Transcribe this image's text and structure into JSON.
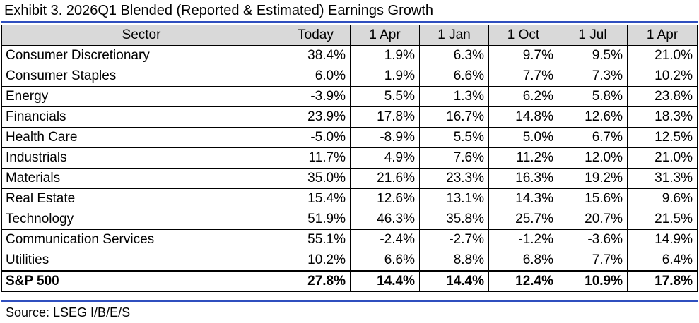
{
  "exhibit": {
    "title": "Exhibit 3.  2026Q1 Blended (Reported & Estimated) Earnings Growth",
    "source": "Source: LSEG I/B/E/S"
  },
  "table": {
    "headers": [
      "Sector",
      "Today",
      "1 Apr",
      "1 Jan",
      "1 Oct",
      "1 Jul",
      "1 Apr"
    ],
    "rows": [
      [
        "Consumer Discretionary",
        "38.4%",
        "1.9%",
        "6.3%",
        "9.7%",
        "9.5%",
        "21.0%"
      ],
      [
        "Consumer Staples",
        "6.0%",
        "1.9%",
        "6.6%",
        "7.7%",
        "7.3%",
        "10.2%"
      ],
      [
        "Energy",
        "-3.9%",
        "5.5%",
        "1.3%",
        "6.2%",
        "5.8%",
        "23.8%"
      ],
      [
        "Financials",
        "23.9%",
        "17.8%",
        "16.7%",
        "14.8%",
        "12.6%",
        "18.3%"
      ],
      [
        "Health Care",
        "-5.0%",
        "-8.9%",
        "5.5%",
        "5.0%",
        "6.7%",
        "12.5%"
      ],
      [
        "Industrials",
        "11.7%",
        "4.9%",
        "7.6%",
        "11.2%",
        "12.0%",
        "21.0%"
      ],
      [
        "Materials",
        "35.0%",
        "21.6%",
        "23.3%",
        "16.3%",
        "19.2%",
        "31.3%"
      ],
      [
        "Real Estate",
        "15.4%",
        "12.6%",
        "13.1%",
        "14.3%",
        "15.6%",
        "9.6%"
      ],
      [
        "Technology",
        "51.9%",
        "46.3%",
        "35.8%",
        "25.7%",
        "20.7%",
        "21.5%"
      ],
      [
        "Communication Services",
        "55.1%",
        "-2.4%",
        "-2.7%",
        "-1.2%",
        "-3.6%",
        "14.9%"
      ],
      [
        "Utilities",
        "10.2%",
        "6.6%",
        "8.8%",
        "6.8%",
        "7.7%",
        "6.4%"
      ],
      [
        "S&P 500",
        "27.8%",
        "14.4%",
        "14.4%",
        "12.4%",
        "10.9%",
        "17.8%"
      ]
    ]
  },
  "colors": {
    "rule": "#2f4fbf",
    "header_bg": "#d9d9d9"
  }
}
